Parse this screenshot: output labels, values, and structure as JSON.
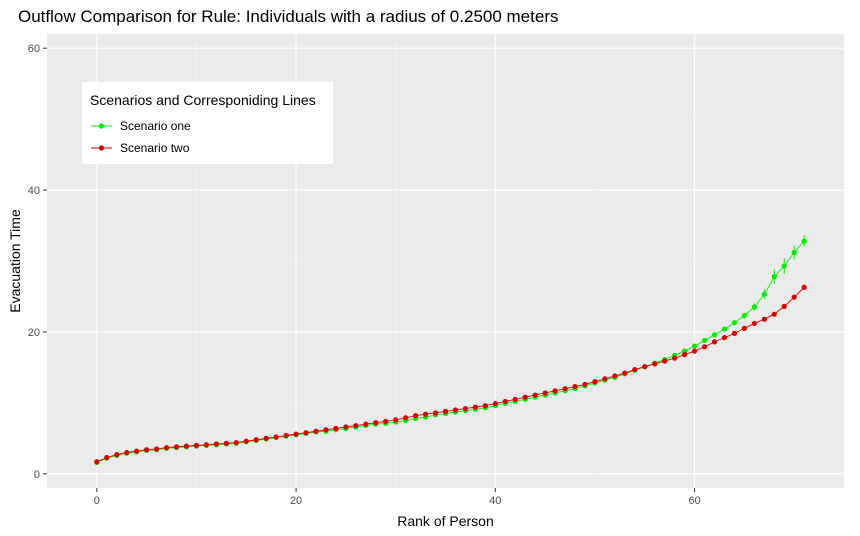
{
  "chart_data": {
    "type": "line",
    "title": "Outflow Comparison for Rule: Individuals with a radius of 0.2500 meters",
    "xlabel": "Rank of Person",
    "ylabel": "Evacuation Time",
    "xlim": [
      -5,
      75
    ],
    "ylim": [
      -2,
      62
    ],
    "xticks": [
      0,
      20,
      40,
      60
    ],
    "yticks": [
      0,
      20,
      40,
      60
    ],
    "grid": true,
    "legend": {
      "title": "Scenarios and Corresponiding Lines",
      "placement": "top-left"
    },
    "series": [
      {
        "name": "Scenario one",
        "color": "#00ee00",
        "x": [
          0,
          1,
          2,
          3,
          4,
          5,
          6,
          7,
          8,
          9,
          10,
          11,
          12,
          13,
          14,
          15,
          16,
          17,
          18,
          19,
          20,
          21,
          22,
          23,
          24,
          25,
          26,
          27,
          28,
          29,
          30,
          31,
          32,
          33,
          34,
          35,
          36,
          37,
          38,
          39,
          40,
          41,
          42,
          43,
          44,
          45,
          46,
          47,
          48,
          49,
          50,
          51,
          52,
          53,
          54,
          55,
          56,
          57,
          58,
          59,
          60,
          61,
          62,
          63,
          64,
          65,
          66,
          67,
          68,
          69,
          70,
          71
        ],
        "y": [
          1.6,
          2.2,
          2.6,
          2.9,
          3.1,
          3.3,
          3.4,
          3.6,
          3.7,
          3.8,
          3.9,
          4.0,
          4.1,
          4.2,
          4.3,
          4.5,
          4.7,
          4.9,
          5.1,
          5.3,
          5.5,
          5.7,
          5.9,
          6.0,
          6.2,
          6.4,
          6.6,
          6.8,
          7.0,
          7.1,
          7.3,
          7.5,
          7.8,
          8.0,
          8.3,
          8.5,
          8.7,
          8.9,
          9.1,
          9.3,
          9.6,
          9.9,
          10.2,
          10.5,
          10.8,
          11.1,
          11.4,
          11.7,
          12.0,
          12.4,
          12.8,
          13.2,
          13.6,
          14.1,
          14.6,
          15.1,
          15.6,
          16.1,
          16.7,
          17.3,
          18.0,
          18.8,
          19.6,
          20.4,
          21.3,
          22.3,
          23.5,
          25.3,
          27.8,
          29.3,
          31.2,
          32.8
        ],
        "errors": [
          0.1,
          0.1,
          0.1,
          0.1,
          0.1,
          0.1,
          0.1,
          0.1,
          0.1,
          0.1,
          0.1,
          0.1,
          0.1,
          0.1,
          0.1,
          0.1,
          0.1,
          0.1,
          0.1,
          0.1,
          0.1,
          0.1,
          0.1,
          0.1,
          0.1,
          0.1,
          0.1,
          0.1,
          0.1,
          0.1,
          0.1,
          0.1,
          0.1,
          0.1,
          0.1,
          0.1,
          0.1,
          0.1,
          0.1,
          0.1,
          0.1,
          0.1,
          0.1,
          0.1,
          0.1,
          0.1,
          0.1,
          0.1,
          0.1,
          0.1,
          0.1,
          0.1,
          0.1,
          0.1,
          0.1,
          0.1,
          0.1,
          0.2,
          0.2,
          0.2,
          0.2,
          0.3,
          0.3,
          0.3,
          0.3,
          0.4,
          0.5,
          0.7,
          1.0,
          1.1,
          1.0,
          0.8
        ]
      },
      {
        "name": "Scenario two",
        "color": "#dd0000",
        "x": [
          0,
          1,
          2,
          3,
          4,
          5,
          6,
          7,
          8,
          9,
          10,
          11,
          12,
          13,
          14,
          15,
          16,
          17,
          18,
          19,
          20,
          21,
          22,
          23,
          24,
          25,
          26,
          27,
          28,
          29,
          30,
          31,
          32,
          33,
          34,
          35,
          36,
          37,
          38,
          39,
          40,
          41,
          42,
          43,
          44,
          45,
          46,
          47,
          48,
          49,
          50,
          51,
          52,
          53,
          54,
          55,
          56,
          57,
          58,
          59,
          60,
          61,
          62,
          63,
          64,
          65,
          66,
          67,
          68,
          69,
          70,
          71
        ],
        "y": [
          1.7,
          2.3,
          2.7,
          3.0,
          3.2,
          3.4,
          3.5,
          3.7,
          3.8,
          3.9,
          4.0,
          4.1,
          4.2,
          4.3,
          4.4,
          4.6,
          4.8,
          5.0,
          5.2,
          5.4,
          5.6,
          5.8,
          6.0,
          6.2,
          6.4,
          6.6,
          6.8,
          7.0,
          7.2,
          7.4,
          7.6,
          7.9,
          8.2,
          8.4,
          8.6,
          8.8,
          9.0,
          9.2,
          9.4,
          9.6,
          9.9,
          10.2,
          10.5,
          10.8,
          11.1,
          11.4,
          11.7,
          12.0,
          12.3,
          12.6,
          13.0,
          13.4,
          13.8,
          14.2,
          14.7,
          15.1,
          15.5,
          15.9,
          16.3,
          16.8,
          17.3,
          17.9,
          18.6,
          19.2,
          19.8,
          20.5,
          21.2,
          21.8,
          22.5,
          23.6,
          24.9,
          26.3
        ],
        "errors": [
          0.1,
          0.1,
          0.1,
          0.1,
          0.1,
          0.1,
          0.1,
          0.1,
          0.1,
          0.1,
          0.1,
          0.1,
          0.1,
          0.1,
          0.1,
          0.1,
          0.1,
          0.1,
          0.1,
          0.1,
          0.1,
          0.1,
          0.1,
          0.1,
          0.1,
          0.1,
          0.1,
          0.1,
          0.1,
          0.1,
          0.1,
          0.1,
          0.1,
          0.1,
          0.1,
          0.1,
          0.1,
          0.1,
          0.1,
          0.1,
          0.1,
          0.1,
          0.1,
          0.1,
          0.1,
          0.1,
          0.1,
          0.1,
          0.1,
          0.1,
          0.1,
          0.1,
          0.1,
          0.1,
          0.1,
          0.1,
          0.1,
          0.1,
          0.1,
          0.1,
          0.1,
          0.1,
          0.1,
          0.1,
          0.1,
          0.1,
          0.1,
          0.1,
          0.2,
          0.2,
          0.3,
          0.3
        ]
      }
    ]
  }
}
